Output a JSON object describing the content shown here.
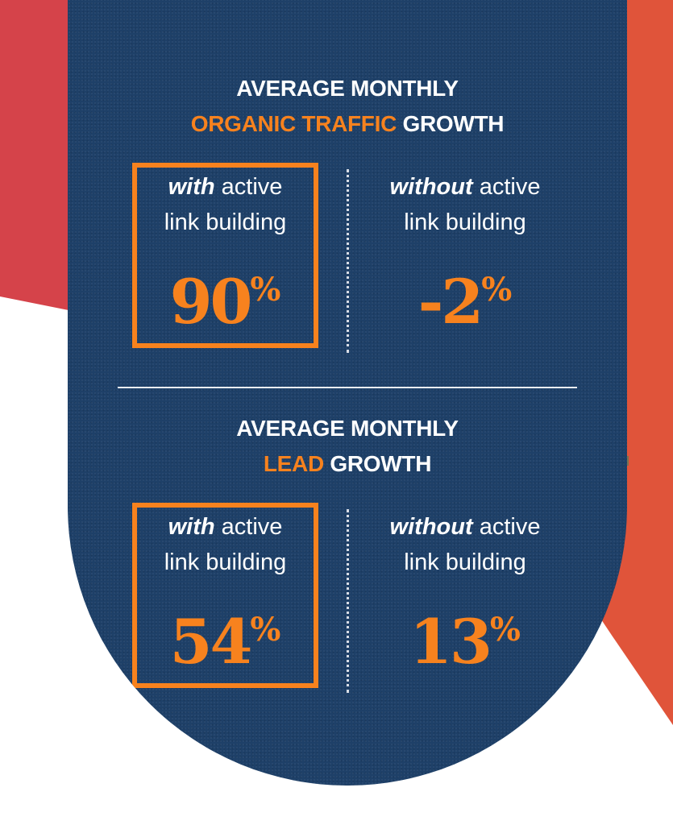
{
  "colors": {
    "panel": "#1e4068",
    "accent": "#f7821e",
    "left_shape": "#d5434a",
    "right_shape": "#e0543a",
    "text": "#ffffff"
  },
  "sections": [
    {
      "title_line1": "AVERAGE MONTHLY",
      "title_accent": "ORGANIC TRAFFIC",
      "title_suffix": "GROWTH",
      "with": {
        "emphasis": "with",
        "rest": "active",
        "line2": "link building",
        "value": "90",
        "unit": "%"
      },
      "without": {
        "emphasis": "without",
        "rest": "active",
        "line2": "link building",
        "value": "-2",
        "unit": "%"
      }
    },
    {
      "title_line1": "AVERAGE MONTHLY",
      "title_accent": "LEAD",
      "title_suffix": "GROWTH",
      "with": {
        "emphasis": "with",
        "rest": "active",
        "line2": "link building",
        "value": "54",
        "unit": "%"
      },
      "without": {
        "emphasis": "without",
        "rest": "active",
        "line2": "link building",
        "value": "13",
        "unit": "%"
      }
    }
  ]
}
